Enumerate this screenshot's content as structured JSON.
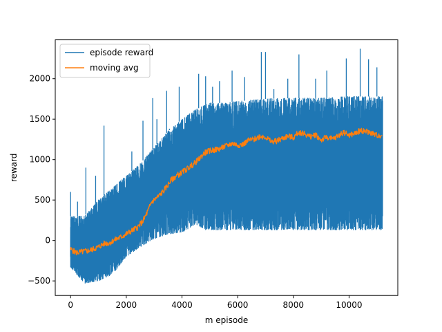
{
  "chart_data": {
    "type": "line",
    "title": "",
    "xlabel": "m episode",
    "ylabel": "reward",
    "xlim": [
      -550,
      11750
    ],
    "ylim": [
      -680,
      2480
    ],
    "xticks": [
      0,
      2000,
      4000,
      6000,
      8000,
      10000
    ],
    "yticks": [
      -500,
      0,
      500,
      1000,
      1500,
      2000
    ],
    "grid": false,
    "legend": {
      "placement": "top-left",
      "entries": [
        "episode reward",
        "moving avg"
      ]
    },
    "series": [
      {
        "name": "episode reward",
        "color": "#1f77b4",
        "x_range": [
          0,
          11200
        ],
        "lower_envelope": [
          [
            0,
            -330
          ],
          [
            500,
            -530
          ],
          [
            1000,
            -500
          ],
          [
            1500,
            -420
          ],
          [
            2000,
            -200
          ],
          [
            2500,
            -80
          ],
          [
            3000,
            20
          ],
          [
            3500,
            80
          ],
          [
            4000,
            100
          ],
          [
            4500,
            200
          ],
          [
            4850,
            130
          ],
          [
            5000,
            130
          ],
          [
            6000,
            130
          ],
          [
            8000,
            130
          ],
          [
            10000,
            130
          ],
          [
            11200,
            130
          ]
        ],
        "upper_envelope": [
          [
            0,
            300
          ],
          [
            500,
            300
          ],
          [
            1000,
            500
          ],
          [
            1500,
            650
          ],
          [
            2000,
            800
          ],
          [
            2500,
            950
          ],
          [
            3000,
            1150
          ],
          [
            3500,
            1350
          ],
          [
            4000,
            1500
          ],
          [
            4500,
            1620
          ],
          [
            5000,
            1700
          ],
          [
            5500,
            1700
          ],
          [
            6000,
            1720
          ],
          [
            7000,
            1750
          ],
          [
            8000,
            1760
          ],
          [
            9000,
            1760
          ],
          [
            10000,
            1780
          ],
          [
            11200,
            1780
          ]
        ],
        "spikes": [
          [
            0,
            600
          ],
          [
            250,
            480
          ],
          [
            550,
            900
          ],
          [
            900,
            800
          ],
          [
            1200,
            1420
          ],
          [
            1350,
            600
          ],
          [
            2200,
            1100
          ],
          [
            2600,
            1480
          ],
          [
            2950,
            1760
          ],
          [
            3100,
            1500
          ],
          [
            3450,
            1850
          ],
          [
            3550,
            1380
          ],
          [
            3900,
            1900
          ],
          [
            4400,
            1600
          ],
          [
            4600,
            2060
          ],
          [
            4850,
            2030
          ],
          [
            5100,
            1900
          ],
          [
            5350,
            1970
          ],
          [
            5800,
            2100
          ],
          [
            6250,
            2020
          ],
          [
            6850,
            2330
          ],
          [
            7000,
            2330
          ],
          [
            7300,
            1870
          ],
          [
            7800,
            2000
          ],
          [
            8200,
            2300
          ],
          [
            8800,
            2000
          ],
          [
            9200,
            2100
          ],
          [
            9900,
            2250
          ],
          [
            10400,
            2370
          ],
          [
            10700,
            2240
          ],
          [
            11000,
            2140
          ]
        ]
      },
      {
        "name": "moving avg",
        "color": "#ff7f0e",
        "points": [
          [
            0,
            -110
          ],
          [
            200,
            -150
          ],
          [
            400,
            -140
          ],
          [
            600,
            -130
          ],
          [
            800,
            -110
          ],
          [
            1000,
            -80
          ],
          [
            1200,
            -40
          ],
          [
            1400,
            -30
          ],
          [
            1600,
            10
          ],
          [
            1800,
            40
          ],
          [
            2000,
            80
          ],
          [
            2200,
            120
          ],
          [
            2400,
            160
          ],
          [
            2600,
            240
          ],
          [
            2800,
            380
          ],
          [
            2900,
            470
          ],
          [
            3000,
            500
          ],
          [
            3200,
            560
          ],
          [
            3400,
            640
          ],
          [
            3600,
            740
          ],
          [
            3800,
            800
          ],
          [
            4000,
            840
          ],
          [
            4200,
            890
          ],
          [
            4400,
            940
          ],
          [
            4600,
            1000
          ],
          [
            4800,
            1080
          ],
          [
            5000,
            1110
          ],
          [
            5200,
            1120
          ],
          [
            5400,
            1140
          ],
          [
            5600,
            1170
          ],
          [
            5800,
            1200
          ],
          [
            6000,
            1180
          ],
          [
            6200,
            1190
          ],
          [
            6400,
            1240
          ],
          [
            6600,
            1250
          ],
          [
            6800,
            1290
          ],
          [
            7000,
            1280
          ],
          [
            7200,
            1220
          ],
          [
            7400,
            1230
          ],
          [
            7600,
            1260
          ],
          [
            7800,
            1290
          ],
          [
            8000,
            1270
          ],
          [
            8200,
            1340
          ],
          [
            8400,
            1320
          ],
          [
            8600,
            1280
          ],
          [
            8800,
            1310
          ],
          [
            9000,
            1240
          ],
          [
            9200,
            1280
          ],
          [
            9400,
            1250
          ],
          [
            9600,
            1290
          ],
          [
            9800,
            1340
          ],
          [
            10000,
            1300
          ],
          [
            10200,
            1320
          ],
          [
            10400,
            1360
          ],
          [
            10600,
            1350
          ],
          [
            10800,
            1330
          ],
          [
            11000,
            1300
          ],
          [
            11200,
            1300
          ]
        ]
      }
    ]
  }
}
